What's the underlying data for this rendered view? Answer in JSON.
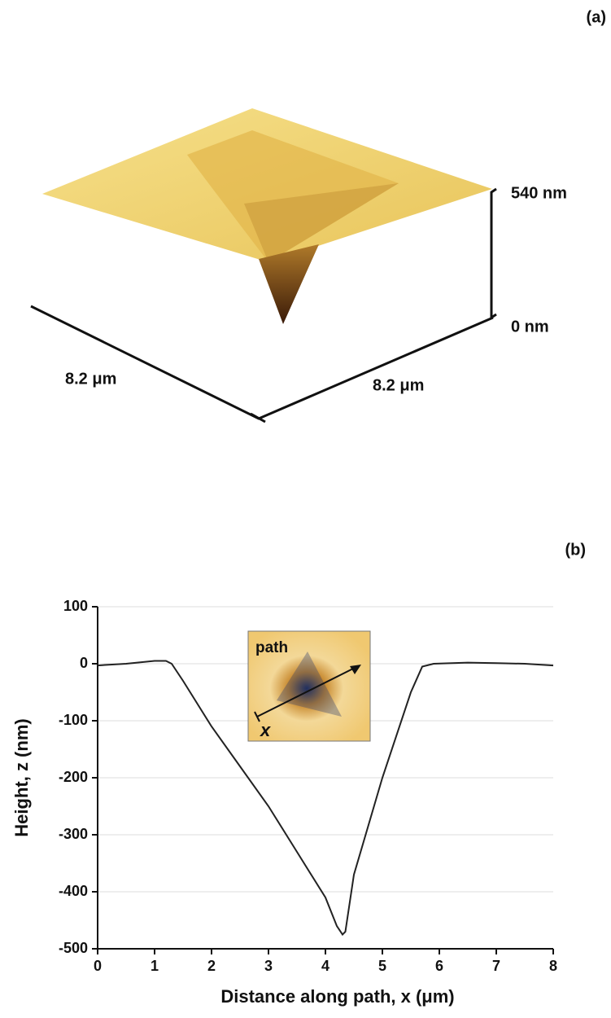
{
  "panel_a": {
    "label": "(a)",
    "z_top": "540 nm",
    "z_bottom": "0 nm",
    "x_size": "8.2 μm",
    "y_size": "8.2 μm"
  },
  "chart_data": {
    "type": "line",
    "panel_label": "(b)",
    "x_label": "Distance along path, x (μm)",
    "y_label": "Height, z (nm)",
    "inset_label": "path",
    "inset_axis_label": "x",
    "x": [
      0,
      0.5,
      1,
      1.2,
      1.3,
      1.5,
      2,
      2.5,
      3,
      3.5,
      4,
      4.2,
      4.3,
      4.35,
      4.5,
      5,
      5.5,
      5.7,
      5.9,
      6.5,
      7,
      7.5,
      8
    ],
    "values": [
      -3,
      0,
      5,
      5,
      0,
      -30,
      -110,
      -180,
      -250,
      -330,
      -410,
      -460,
      -475,
      -470,
      -370,
      -200,
      -50,
      -5,
      0,
      2,
      1,
      0,
      -3
    ],
    "color": "#222222",
    "xlim": [
      0,
      8
    ],
    "xticks": [
      0,
      1,
      2,
      3,
      4,
      5,
      6,
      7,
      8
    ],
    "ylim": [
      -500,
      100
    ],
    "yticks": [
      100,
      0,
      -100,
      -200,
      -300,
      -400,
      -500
    ],
    "grid": true
  }
}
